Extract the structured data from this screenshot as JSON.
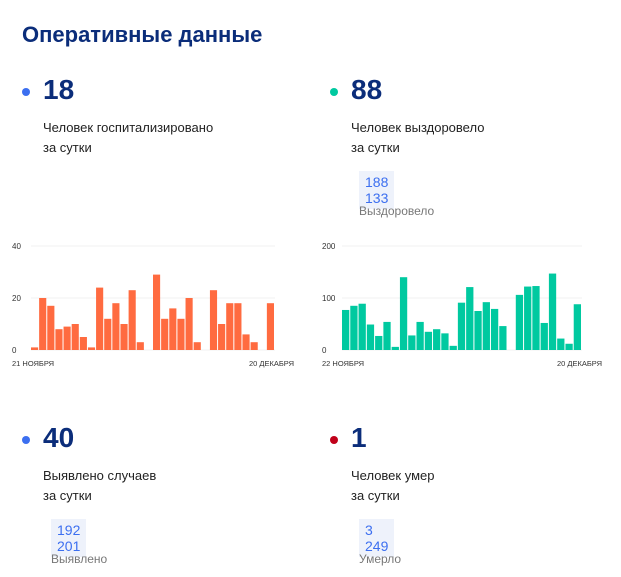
{
  "title": "Оперативные данные",
  "stats": [
    {
      "value": "18",
      "desc1": "Человек госпитализировано",
      "desc2": "за сутки",
      "color": "#3c6ff0"
    },
    {
      "value": "88",
      "desc1": "Человек выздоровело",
      "desc2": "за сутки",
      "total": "188 133",
      "total_label": "Выздоровело",
      "color": "#00c9a0"
    },
    {
      "value": "40",
      "desc1": "Выявлено случаев",
      "desc2": "за сутки",
      "total": "192 201",
      "total_label": "Выявлено",
      "color": "#3c6ff0"
    },
    {
      "value": "1",
      "desc1": "Человек умер",
      "desc2": "за сутки",
      "total": "3 249",
      "total_label": "Умерло",
      "color": "#c0001a"
    }
  ],
  "chart_data": [
    {
      "type": "bar",
      "title": "Госпитализировано",
      "color": "#ff6b40",
      "ylim": [
        0,
        40
      ],
      "yticks": [
        "0",
        "20",
        "40"
      ],
      "x_start": "21 НОЯБРЯ",
      "x_end": "20 ДЕКАБРЯ",
      "values": [
        1,
        20,
        17,
        8,
        9,
        10,
        5,
        1,
        24,
        12,
        18,
        10,
        23,
        3,
        0,
        29,
        12,
        16,
        12,
        20,
        3,
        0,
        23,
        10,
        18,
        18,
        6,
        3,
        0,
        18
      ]
    },
    {
      "type": "bar",
      "title": "Выздоровело",
      "color": "#00c9a0",
      "ylim": [
        0,
        200
      ],
      "yticks": [
        "0",
        "100",
        "200"
      ],
      "x_start": "22 НОЯБРЯ",
      "x_end": "20 ДЕКАБРЯ",
      "values": [
        77,
        85,
        89,
        49,
        27,
        54,
        6,
        140,
        28,
        54,
        35,
        40,
        32,
        8,
        91,
        121,
        75,
        92,
        79,
        46,
        0,
        106,
        122,
        123,
        52,
        147,
        22,
        12,
        88
      ]
    }
  ]
}
